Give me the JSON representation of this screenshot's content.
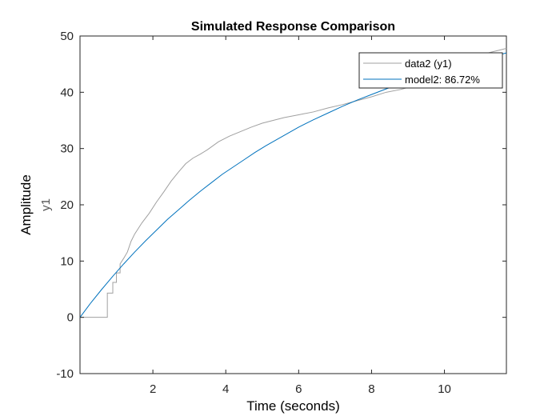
{
  "chart_data": {
    "type": "line",
    "title": "Simulated Response Comparison",
    "xlabel": "Time (seconds)",
    "ylabel": "Amplitude",
    "ylabel_channel": "y1",
    "xlim": [
      0,
      11.7
    ],
    "ylim": [
      -10,
      50
    ],
    "xticks": [
      2,
      4,
      6,
      8,
      10
    ],
    "yticks": [
      -10,
      0,
      10,
      20,
      30,
      40,
      50
    ],
    "grid": false,
    "legend_position": "top-right",
    "series": [
      {
        "name": "data2 (y1)",
        "color": "#a0a0a0",
        "style": "stairs",
        "x": [
          0,
          0.5,
          0.75,
          0.75,
          0.9,
          0.9,
          1.0,
          1.0,
          1.1,
          1.1,
          1.2,
          1.3,
          1.4,
          1.5,
          1.7,
          1.9,
          2.1,
          2.3,
          2.5,
          2.7,
          2.9,
          3.1,
          3.3,
          3.5,
          3.8,
          4.1,
          4.4,
          4.7,
          5.0,
          5.3,
          5.6,
          6.0,
          6.4,
          6.8,
          7.2,
          7.6,
          8.0,
          8.4,
          8.8,
          9.2,
          9.6,
          10.0,
          10.4,
          10.8,
          11.2,
          11.7
        ],
        "y": [
          0,
          0,
          0,
          4.3,
          4.3,
          6.2,
          6.2,
          7.9,
          7.9,
          9.5,
          10.5,
          11.6,
          13.5,
          14.8,
          16.8,
          18.5,
          20.5,
          22.3,
          24.2,
          25.8,
          27.3,
          28.3,
          29.0,
          29.8,
          31.2,
          32.2,
          33.0,
          33.8,
          34.5,
          35.0,
          35.5,
          36.0,
          36.5,
          37.2,
          37.8,
          38.5,
          39.2,
          40.0,
          40.5,
          41.2,
          42.2,
          43.5,
          44.5,
          45.5,
          47.0,
          47.8
        ]
      },
      {
        "name": "model2: 86.72%",
        "color": "#0072bd",
        "style": "line",
        "x": [
          0,
          0.3,
          0.6,
          0.9,
          1.2,
          1.5,
          1.8,
          2.1,
          2.4,
          2.7,
          3.0,
          3.3,
          3.6,
          3.9,
          4.2,
          4.5,
          4.8,
          5.1,
          5.4,
          5.7,
          6.0,
          6.4,
          6.8,
          7.2,
          7.6,
          8.0,
          8.4,
          8.8,
          9.2,
          9.6,
          10.0,
          10.4,
          10.8,
          11.2,
          11.7
        ],
        "y": [
          0,
          2.6,
          5.0,
          7.3,
          9.5,
          11.6,
          13.6,
          15.5,
          17.4,
          19.1,
          20.8,
          22.4,
          23.9,
          25.4,
          26.7,
          28.0,
          29.3,
          30.5,
          31.6,
          32.7,
          33.8,
          35.1,
          36.3,
          37.5,
          38.6,
          39.6,
          40.6,
          41.5,
          42.3,
          43.2,
          44.0,
          44.7,
          45.4,
          46.1,
          47.0
        ]
      }
    ]
  }
}
